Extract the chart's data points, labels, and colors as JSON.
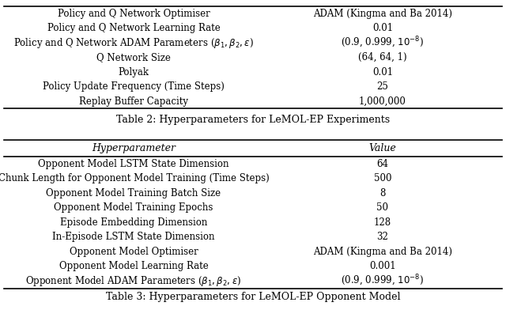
{
  "table2_caption": "Table 2: Hyperparameters for LeMOL-EP Experiments",
  "table2_rows": [
    [
      "Policy and Q Network Optimiser",
      "ADAM (Kingma and Ba 2014)"
    ],
    [
      "Policy and Q Network Learning Rate",
      "0.01"
    ],
    [
      "Policy and Q Network ADAM Parameters ($\\beta_1, \\beta_2, \\epsilon$)",
      "(0.9, 0.999, $10^{-8}$)"
    ],
    [
      "Q Network Size",
      "(64, 64, 1)"
    ],
    [
      "Polyak",
      "0.01"
    ],
    [
      "Policy Update Frequency (Time Steps)",
      "25"
    ],
    [
      "Replay Buffer Capacity",
      "1,000,000"
    ]
  ],
  "table3_caption": "Table 3: Hyperparameters for LeMOL-EP Opponent Model",
  "table3_header": [
    "Hyperparameter",
    "Value"
  ],
  "table3_rows": [
    [
      "Opponent Model LSTM State Dimension",
      "64"
    ],
    [
      "Chunk Length for Opponent Model Training (Time Steps)",
      "500"
    ],
    [
      "Opponent Model Training Batch Size",
      "8"
    ],
    [
      "Opponent Model Training Epochs",
      "50"
    ],
    [
      "Episode Embedding Dimension",
      "128"
    ],
    [
      "In-Episode LSTM State Dimension",
      "32"
    ],
    [
      "Opponent Model Optimiser",
      "ADAM (Kingma and Ba 2014)"
    ],
    [
      "Opponent Model Learning Rate",
      "0.001"
    ],
    [
      "Opponent Model ADAM Parameters ($\\beta_1, \\beta_2, \\epsilon$)",
      "(0.9, 0.999, $10^{-8}$)"
    ]
  ],
  "bg_color": "#ffffff",
  "font_size": 8.5,
  "caption_font_size": 9.0
}
